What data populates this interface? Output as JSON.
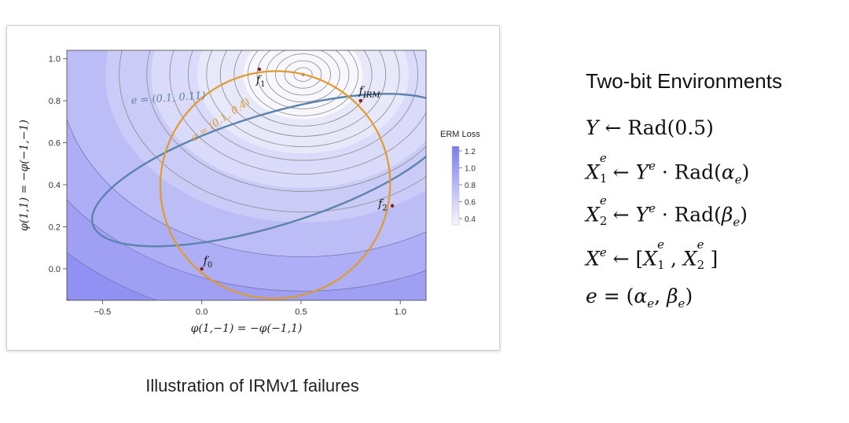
{
  "caption": "Illustration of IRMv1 failures",
  "right_panel": {
    "title": "Two-bit Environments",
    "equations": [
      "Y ← Rad(0.5)",
      "X_1^e ← Y^e · Rad(α_e)",
      "X_2^e ← Y^e · Rad(β_e)",
      "X^e ← [X_1^e, X_2^e]",
      "e = (α_e, β_e)"
    ]
  },
  "chart_data": {
    "type": "contour",
    "xlabel": "φ(1,−1) = −φ(−1,1)",
    "ylabel": "φ(1,1) = −φ(−1,−1)",
    "xlim": [
      -0.68,
      1.13
    ],
    "ylim": [
      -0.15,
      1.04
    ],
    "xticks": [
      -0.5,
      0.0,
      0.5,
      1.0
    ],
    "yticks": [
      0.0,
      0.2,
      0.4,
      0.6,
      0.8,
      1.0
    ],
    "xtick_labels": [
      "−0.5",
      "0.0",
      "0.5",
      "1.0"
    ],
    "ytick_labels": [
      "0.0",
      "0.2",
      "0.4",
      "0.6",
      "0.8",
      "1.0"
    ],
    "loss_minimum": {
      "x": 0.51,
      "y": 0.925
    },
    "colorbar": {
      "title": "ERM Loss",
      "ticks": [
        "1.2",
        "1.0",
        "0.8",
        "0.6",
        "0.4"
      ],
      "low_color": "#f7f7fd",
      "high_color": "#7a7bf0"
    },
    "curves": [
      {
        "label": "e = (0.1, 0.11)",
        "color": "#5b84ad"
      },
      {
        "label": "e = (0.1, 0.4)",
        "color": "#e19b2c"
      }
    ],
    "points": [
      {
        "label": "f",
        "subscript": "0",
        "x": 0.0,
        "y": 0.0
      },
      {
        "label": "f",
        "subscript": "1",
        "x": 0.29,
        "y": 0.95
      },
      {
        "label": "f",
        "subscript": "IRM",
        "x": 0.8,
        "y": 0.8
      },
      {
        "label": "f",
        "subscript": "2",
        "x": 0.96,
        "y": 0.3
      }
    ]
  }
}
